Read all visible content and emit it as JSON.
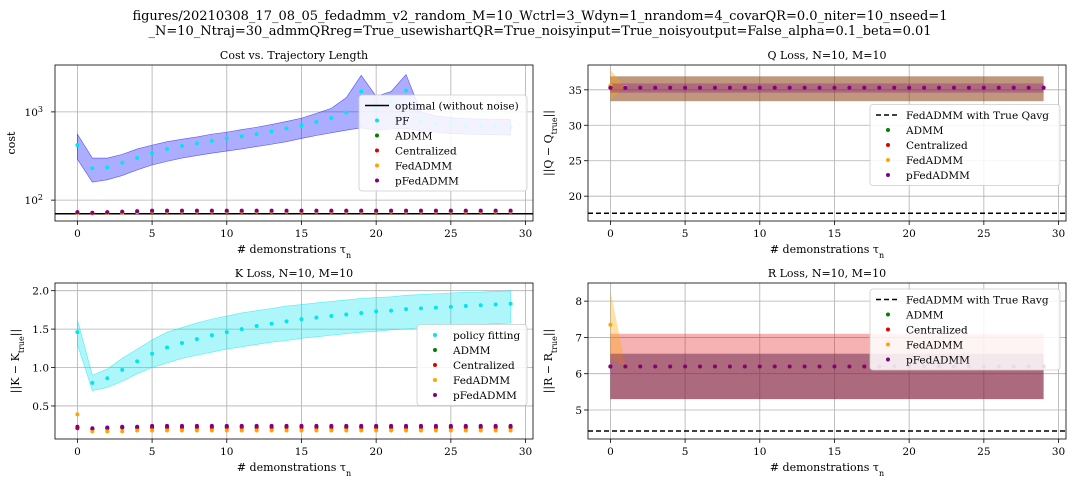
{
  "figure": {
    "suptitle_line1": "figures/20210308_17_08_05_fedadmm_v2_random_M=10_Wctrl=3_Wdyn=1_nrandom=4_covarQR=0.0_niter=10_nseed=1",
    "suptitle_line2": "_N=10_Ntraj=30_admmQRreg=True_usewishartQR=True_noisyinput=True_noisyoutput=False_alpha=0.1_beta=0.01"
  },
  "colors": {
    "pf": "#00e5ee",
    "admm": "#008000",
    "centralized": "#e00000",
    "fedadmm": "#ffa500",
    "pfedadmm": "#800080",
    "band_blue": "#0000ff",
    "ref": "#000000"
  },
  "chart_data": [
    {
      "type": "scatter",
      "title": "Cost vs. Trajectory Length",
      "xlabel": "# demonstrations τ",
      "xlabel_sub": "n",
      "ylabel": "cost",
      "yscale": "log",
      "xlim": [
        -1.5,
        30.5
      ],
      "ylim": [
        58,
        3400
      ],
      "xticks": [
        0,
        5,
        10,
        15,
        20,
        25,
        30
      ],
      "yticks": [
        {
          "value": 100,
          "label": "10",
          "exp": "2"
        },
        {
          "value": 1000,
          "label": "10",
          "exp": "3"
        }
      ],
      "grid": true,
      "legend_position": "upper-right",
      "hline": {
        "y": 70,
        "name": "optimal (without noise)",
        "style": "solid"
      },
      "x": [
        0,
        1,
        2,
        3,
        4,
        5,
        6,
        7,
        8,
        9,
        10,
        11,
        12,
        13,
        14,
        15,
        16,
        17,
        18,
        19,
        20,
        21,
        22,
        23,
        24,
        25,
        26,
        27,
        28,
        29
      ],
      "series": [
        {
          "name": "PF",
          "color_key": "pf",
          "values": [
            420,
            230,
            235,
            265,
            300,
            340,
            380,
            410,
            440,
            470,
            500,
            530,
            560,
            600,
            650,
            700,
            770,
            850,
            980,
            1700,
            1080,
            1300,
            1750,
            780,
            720,
            700,
            690,
            690,
            680,
            670
          ],
          "band_low": [
            290,
            160,
            170,
            190,
            220,
            250,
            275,
            300,
            320,
            340,
            360,
            380,
            405,
            430,
            460,
            500,
            540,
            580,
            620,
            660,
            620,
            640,
            650,
            610,
            590,
            570,
            560,
            555,
            550,
            545
          ],
          "band_high": [
            560,
            300,
            300,
            330,
            380,
            420,
            460,
            490,
            520,
            560,
            590,
            630,
            670,
            720,
            780,
            850,
            960,
            1100,
            1450,
            2600,
            1500,
            1700,
            2650,
            1000,
            900,
            860,
            840,
            830,
            830,
            820
          ]
        },
        {
          "name": "ADMM",
          "color_key": "admm",
          "values": [
            72,
            71,
            72,
            72,
            73,
            74,
            74,
            74,
            74,
            74,
            74,
            74,
            74,
            74,
            74,
            74,
            74,
            74,
            74,
            74,
            74,
            74,
            74,
            74,
            74,
            74,
            74,
            74,
            74,
            74
          ]
        },
        {
          "name": "Centralized",
          "color_key": "centralized",
          "values": [
            72,
            71,
            72,
            72,
            73,
            74,
            74,
            74,
            74,
            74,
            74,
            74,
            74,
            74,
            74,
            74,
            74,
            74,
            74,
            74,
            74,
            74,
            74,
            74,
            74,
            74,
            74,
            74,
            74,
            74
          ]
        },
        {
          "name": "FedADMM",
          "color_key": "fedadmm",
          "values": [
            72,
            71,
            72,
            72,
            73,
            74,
            74,
            74,
            74,
            74,
            74,
            74,
            74,
            74,
            74,
            74,
            74,
            74,
            74,
            74,
            74,
            74,
            74,
            74,
            74,
            74,
            74,
            74,
            74,
            74
          ]
        },
        {
          "name": "pFedADMM",
          "color_key": "pfedadmm",
          "values": [
            73,
            72,
            73,
            74,
            75,
            76,
            76,
            76,
            76,
            76,
            76,
            76,
            76,
            76,
            76,
            76,
            76,
            76,
            76,
            76,
            76,
            76,
            76,
            76,
            76,
            76,
            76,
            76,
            76,
            76
          ]
        }
      ]
    },
    {
      "type": "scatter",
      "title": "Q Loss, N=10, M=10",
      "xlabel": "# demonstrations τ",
      "xlabel_sub": "n",
      "ylabel": "||Q − Q",
      "ylabel_sub": "true",
      "ylabel_end": "||",
      "yscale": "linear",
      "xlim": [
        -1.5,
        30.5
      ],
      "ylim": [
        16.5,
        38.5
      ],
      "xticks": [
        0,
        5,
        10,
        15,
        20,
        25,
        30
      ],
      "yticks": [
        20,
        25,
        30,
        35
      ],
      "grid": true,
      "legend_position": "center-right",
      "hline": {
        "y": 17.6,
        "name": "FedADMM with True Qavg",
        "style": "dashed"
      },
      "x": [
        0,
        1,
        2,
        3,
        4,
        5,
        6,
        7,
        8,
        9,
        10,
        11,
        12,
        13,
        14,
        15,
        16,
        17,
        18,
        19,
        20,
        21,
        22,
        23,
        24,
        25,
        26,
        27,
        28,
        29
      ],
      "series": [
        {
          "name": "ADMM",
          "color_key": "admm",
          "band_low": 33.4,
          "band_high": 36.9,
          "values": [
            35.3,
            35.3,
            35.3,
            35.3,
            35.3,
            35.3,
            35.3,
            35.3,
            35.3,
            35.3,
            35.3,
            35.3,
            35.3,
            35.3,
            35.3,
            35.3,
            35.3,
            35.3,
            35.3,
            35.3,
            35.3,
            35.3,
            35.3,
            35.3,
            35.3,
            35.3,
            35.3,
            35.3,
            35.3,
            35.3
          ]
        },
        {
          "name": "Centralized",
          "color_key": "centralized",
          "band_low": 33.4,
          "band_high": 36.9,
          "values": [
            35.4,
            35.3,
            35.3,
            35.3,
            35.3,
            35.3,
            35.3,
            35.3,
            35.3,
            35.3,
            35.3,
            35.3,
            35.3,
            35.3,
            35.3,
            35.3,
            35.3,
            35.3,
            35.3,
            35.3,
            35.3,
            35.3,
            35.3,
            35.3,
            35.3,
            35.3,
            35.3,
            35.3,
            35.3,
            35.3
          ]
        },
        {
          "name": "FedADMM",
          "color_key": "fedadmm",
          "band_low_first": 33.6,
          "band_high_first": 37.8,
          "values": [
            35.6,
            35.4,
            35.3,
            35.3,
            35.3,
            35.3,
            35.3,
            35.3,
            35.3,
            35.3,
            35.3,
            35.3,
            35.3,
            35.3,
            35.3,
            35.3,
            35.3,
            35.3,
            35.3,
            35.3,
            35.3,
            35.3,
            35.3,
            35.3,
            35.3,
            35.3,
            35.3,
            35.3,
            35.3,
            35.3
          ]
        },
        {
          "name": "pFedADMM",
          "color_key": "pfedadmm",
          "band_low": 34.6,
          "band_high": 35.9,
          "values": [
            35.3,
            35.3,
            35.3,
            35.3,
            35.3,
            35.3,
            35.3,
            35.3,
            35.3,
            35.3,
            35.3,
            35.3,
            35.3,
            35.3,
            35.3,
            35.3,
            35.3,
            35.3,
            35.3,
            35.3,
            35.3,
            35.3,
            35.3,
            35.3,
            35.3,
            35.3,
            35.3,
            35.3,
            35.3,
            35.3
          ]
        }
      ]
    },
    {
      "type": "scatter",
      "title": "K Loss, N=10, M=10",
      "xlabel": "# demonstrations τ",
      "xlabel_sub": "n",
      "ylabel": "||K − K",
      "ylabel_sub": "true",
      "ylabel_end": "||",
      "yscale": "linear",
      "xlim": [
        -1.5,
        30.5
      ],
      "ylim": [
        0.07,
        2.1
      ],
      "xticks": [
        0,
        5,
        10,
        15,
        20,
        25,
        30
      ],
      "yticks": [
        0.5,
        1.0,
        1.5,
        2.0
      ],
      "ytick_labels": [
        "0.5",
        "1.0",
        "1.5",
        "2.0"
      ],
      "grid": true,
      "legend_position": "center-right",
      "x": [
        0,
        1,
        2,
        3,
        4,
        5,
        6,
        7,
        8,
        9,
        10,
        11,
        12,
        13,
        14,
        15,
        16,
        17,
        18,
        19,
        20,
        21,
        22,
        23,
        24,
        25,
        26,
        27,
        28,
        29
      ],
      "series": [
        {
          "name": "policy fitting",
          "color_key": "pf",
          "values": [
            1.46,
            0.8,
            0.86,
            0.97,
            1.08,
            1.18,
            1.26,
            1.32,
            1.37,
            1.42,
            1.46,
            1.5,
            1.54,
            1.57,
            1.6,
            1.63,
            1.65,
            1.67,
            1.69,
            1.71,
            1.73,
            1.74,
            1.76,
            1.77,
            1.78,
            1.79,
            1.8,
            1.81,
            1.82,
            1.83
          ],
          "band_low": [
            1.3,
            0.7,
            0.74,
            0.82,
            0.92,
            1.0,
            1.06,
            1.12,
            1.16,
            1.2,
            1.24,
            1.27,
            1.3,
            1.33,
            1.35,
            1.38,
            1.4,
            1.42,
            1.44,
            1.46,
            1.47,
            1.49,
            1.5,
            1.52,
            1.53,
            1.54,
            1.55,
            1.56,
            1.57,
            1.58
          ],
          "band_high": [
            1.62,
            0.9,
            0.98,
            1.12,
            1.24,
            1.36,
            1.46,
            1.52,
            1.58,
            1.63,
            1.67,
            1.71,
            1.74,
            1.77,
            1.8,
            1.82,
            1.84,
            1.86,
            1.88,
            1.9,
            1.91,
            1.92,
            1.94,
            1.95,
            1.96,
            1.97,
            1.98,
            1.98,
            1.99,
            2.0
          ]
        },
        {
          "name": "ADMM",
          "color_key": "admm",
          "values": [
            0.22,
            0.2,
            0.21,
            0.22,
            0.22,
            0.23,
            0.23,
            0.23,
            0.23,
            0.23,
            0.23,
            0.23,
            0.23,
            0.23,
            0.23,
            0.23,
            0.23,
            0.23,
            0.23,
            0.23,
            0.23,
            0.23,
            0.23,
            0.23,
            0.23,
            0.23,
            0.23,
            0.23,
            0.23,
            0.23
          ]
        },
        {
          "name": "Centralized",
          "color_key": "centralized",
          "values": [
            0.21,
            0.2,
            0.21,
            0.22,
            0.22,
            0.22,
            0.22,
            0.22,
            0.22,
            0.22,
            0.22,
            0.22,
            0.22,
            0.22,
            0.22,
            0.22,
            0.22,
            0.22,
            0.22,
            0.22,
            0.22,
            0.22,
            0.22,
            0.22,
            0.22,
            0.22,
            0.22,
            0.22,
            0.22,
            0.22
          ]
        },
        {
          "name": "FedADMM",
          "color_key": "fedadmm",
          "values": [
            0.39,
            0.17,
            0.17,
            0.17,
            0.18,
            0.18,
            0.18,
            0.18,
            0.18,
            0.18,
            0.18,
            0.18,
            0.18,
            0.18,
            0.18,
            0.18,
            0.18,
            0.18,
            0.18,
            0.18,
            0.18,
            0.18,
            0.18,
            0.18,
            0.18,
            0.18,
            0.18,
            0.18,
            0.18,
            0.18
          ]
        },
        {
          "name": "pFedADMM",
          "color_key": "pfedadmm",
          "values": [
            0.23,
            0.21,
            0.22,
            0.23,
            0.23,
            0.24,
            0.24,
            0.24,
            0.24,
            0.24,
            0.24,
            0.24,
            0.24,
            0.24,
            0.24,
            0.24,
            0.24,
            0.24,
            0.24,
            0.24,
            0.24,
            0.24,
            0.24,
            0.24,
            0.24,
            0.24,
            0.24,
            0.24,
            0.24,
            0.24
          ]
        }
      ]
    },
    {
      "type": "scatter",
      "title": "R Loss, N=10, M=10",
      "xlabel": "# demonstrations τ",
      "xlabel_sub": "n",
      "ylabel": "||R − R",
      "ylabel_sub": "true",
      "ylabel_end": "||",
      "yscale": "linear",
      "xlim": [
        -1.5,
        30.5
      ],
      "ylim": [
        4.2,
        8.5
      ],
      "xticks": [
        0,
        5,
        10,
        15,
        20,
        25,
        30
      ],
      "yticks": [
        5,
        6,
        7,
        8
      ],
      "grid": true,
      "legend_position": "upper-right",
      "hline": {
        "y": 4.42,
        "name": "FedADMM with True Ravg",
        "style": "dashed"
      },
      "x": [
        0,
        1,
        2,
        3,
        4,
        5,
        6,
        7,
        8,
        9,
        10,
        11,
        12,
        13,
        14,
        15,
        16,
        17,
        18,
        19,
        20,
        21,
        22,
        23,
        24,
        25,
        26,
        27,
        28,
        29
      ],
      "series": [
        {
          "name": "ADMM",
          "color_key": "admm",
          "band_low": 5.3,
          "band_high": 6.55,
          "values": [
            6.2,
            6.2,
            6.2,
            6.2,
            6.2,
            6.2,
            6.2,
            6.2,
            6.2,
            6.2,
            6.2,
            6.2,
            6.2,
            6.2,
            6.2,
            6.2,
            6.2,
            6.2,
            6.2,
            6.2,
            6.2,
            6.2,
            6.2,
            6.2,
            6.2,
            6.2,
            6.2,
            6.2,
            6.2,
            6.2
          ]
        },
        {
          "name": "Centralized",
          "color_key": "centralized",
          "band_low": 5.3,
          "band_high": 7.1,
          "values": [
            6.2,
            6.2,
            6.2,
            6.2,
            6.2,
            6.2,
            6.2,
            6.2,
            6.2,
            6.2,
            6.2,
            6.2,
            6.2,
            6.2,
            6.2,
            6.2,
            6.2,
            6.2,
            6.2,
            6.2,
            6.2,
            6.2,
            6.2,
            6.2,
            6.2,
            6.2,
            6.2,
            6.2,
            6.2,
            6.2
          ]
        },
        {
          "name": "FedADMM",
          "color_key": "fedadmm",
          "band_low_first": 6.4,
          "band_high_first": 8.3,
          "values": [
            7.35,
            6.2,
            6.2,
            6.2,
            6.2,
            6.2,
            6.2,
            6.2,
            6.2,
            6.2,
            6.2,
            6.2,
            6.2,
            6.2,
            6.2,
            6.2,
            6.2,
            6.2,
            6.2,
            6.2,
            6.2,
            6.2,
            6.2,
            6.2,
            6.2,
            6.2,
            6.2,
            6.2,
            6.2,
            6.2
          ]
        },
        {
          "name": "pFedADMM",
          "color_key": "pfedadmm",
          "band_low": 5.3,
          "band_high": 6.55,
          "values": [
            6.2,
            6.2,
            6.2,
            6.2,
            6.2,
            6.2,
            6.2,
            6.2,
            6.2,
            6.2,
            6.2,
            6.2,
            6.2,
            6.2,
            6.2,
            6.2,
            6.2,
            6.2,
            6.2,
            6.2,
            6.2,
            6.2,
            6.2,
            6.2,
            6.2,
            6.2,
            6.2,
            6.2,
            6.2,
            6.2
          ]
        }
      ]
    }
  ]
}
